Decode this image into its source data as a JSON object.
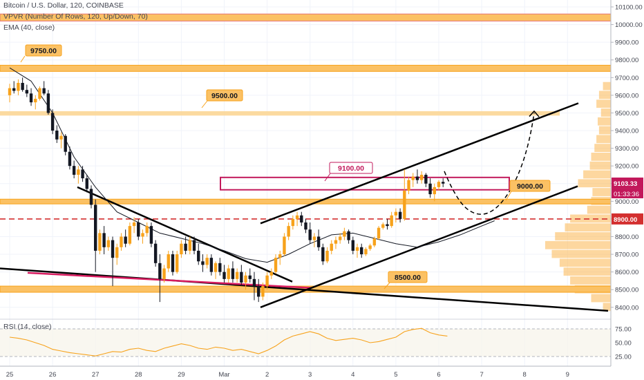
{
  "header": {
    "symbol_line": "Bitcoin / U.S. Dollar, 120, COINBASE",
    "indicator_vpvr": "VPVR (Number Of Rows, 120, Up/Down, 70)",
    "indicator_ema": "EMA (40, close)",
    "rsi_label": "RSI (14, close)"
  },
  "colors": {
    "up_candle": "#f7a21b",
    "down_candle": "#131722",
    "level_fill": "#fbc164",
    "level_stroke": "#f7a21b",
    "resistance_box": "#c2185b",
    "dashed_level": "#d32f2f",
    "trendline": "#000000",
    "pink_trendline": "#d81b60",
    "rsi_line": "#f7a21b",
    "volume_profile": "#fbb750"
  },
  "chart_data": {
    "type": "line",
    "title": "Bitcoin / U.S. Dollar, 120, COINBASE",
    "ylim": [
      8360,
      10100
    ],
    "y_ticks": [
      "10100.00",
      "10000.00",
      "9900.00",
      "9800.00",
      "9700.00",
      "9600.00",
      "9500.00",
      "9400.00",
      "9300.00",
      "9200.00",
      "9100.00",
      "9000.00",
      "8900.00",
      "8800.00",
      "8700.00",
      "8600.00",
      "8500.00",
      "8400.00"
    ],
    "x_ticks": [
      "25",
      "26",
      "27",
      "28",
      "29",
      "Mar",
      "2",
      "3",
      "4",
      "5",
      "6",
      "7",
      "8",
      "9"
    ],
    "series": [
      {
        "name": "EMA (40, close)",
        "values": [
          {
            "x": 25.0,
            "y": 9755
          },
          {
            "x": 25.5,
            "y": 9680
          },
          {
            "x": 26.0,
            "y": 9500
          },
          {
            "x": 26.5,
            "y": 9250
          },
          {
            "x": 27.0,
            "y": 9080
          },
          {
            "x": 27.5,
            "y": 8940
          },
          {
            "x": 28.0,
            "y": 8880
          },
          {
            "x": 28.5,
            "y": 8820
          },
          {
            "x": 29.0,
            "y": 8790
          },
          {
            "x": 29.5,
            "y": 8760
          },
          {
            "x": 30.0,
            "y": 8720
          },
          {
            "x": 30.5,
            "y": 8675
          },
          {
            "x": 31.0,
            "y": 8655
          },
          {
            "x": 31.5,
            "y": 8700
          },
          {
            "x": 32.0,
            "y": 8760
          },
          {
            "x": 32.5,
            "y": 8810
          },
          {
            "x": 33.0,
            "y": 8820
          },
          {
            "x": 33.5,
            "y": 8790
          },
          {
            "x": 34.0,
            "y": 8760
          },
          {
            "x": 34.5,
            "y": 8740
          },
          {
            "x": 35.0,
            "y": 8770
          },
          {
            "x": 35.5,
            "y": 8810
          },
          {
            "x": 36.0,
            "y": 8860
          },
          {
            "x": 36.3,
            "y": 8890
          }
        ]
      }
    ],
    "candles": [
      {
        "x": 25.0,
        "o": 9600,
        "h": 9665,
        "l": 9560,
        "c": 9640
      },
      {
        "x": 25.1,
        "o": 9640,
        "h": 9680,
        "l": 9610,
        "c": 9625
      },
      {
        "x": 25.2,
        "o": 9625,
        "h": 9690,
        "l": 9600,
        "c": 9670
      },
      {
        "x": 25.3,
        "o": 9670,
        "h": 9700,
        "l": 9620,
        "c": 9630
      },
      {
        "x": 25.4,
        "o": 9630,
        "h": 9660,
        "l": 9590,
        "c": 9610
      },
      {
        "x": 25.5,
        "o": 9610,
        "h": 9640,
        "l": 9540,
        "c": 9560
      },
      {
        "x": 25.6,
        "o": 9560,
        "h": 9600,
        "l": 9520,
        "c": 9580
      },
      {
        "x": 25.7,
        "o": 9580,
        "h": 9650,
        "l": 9570,
        "c": 9640
      },
      {
        "x": 25.8,
        "o": 9640,
        "h": 9680,
        "l": 9600,
        "c": 9610
      },
      {
        "x": 25.9,
        "o": 9610,
        "h": 9630,
        "l": 9490,
        "c": 9500
      },
      {
        "x": 26.0,
        "o": 9500,
        "h": 9520,
        "l": 9380,
        "c": 9400
      },
      {
        "x": 26.1,
        "o": 9400,
        "h": 9430,
        "l": 9330,
        "c": 9350
      },
      {
        "x": 26.2,
        "o": 9350,
        "h": 9390,
        "l": 9300,
        "c": 9370
      },
      {
        "x": 26.3,
        "o": 9370,
        "h": 9380,
        "l": 9260,
        "c": 9280
      },
      {
        "x": 26.4,
        "o": 9280,
        "h": 9310,
        "l": 9180,
        "c": 9200
      },
      {
        "x": 26.5,
        "o": 9200,
        "h": 9230,
        "l": 9130,
        "c": 9150
      },
      {
        "x": 26.6,
        "o": 9150,
        "h": 9200,
        "l": 9100,
        "c": 9180
      },
      {
        "x": 26.7,
        "o": 9180,
        "h": 9200,
        "l": 9110,
        "c": 9130
      },
      {
        "x": 26.8,
        "o": 9130,
        "h": 9150,
        "l": 9050,
        "c": 9070
      },
      {
        "x": 26.9,
        "o": 9070,
        "h": 9090,
        "l": 8960,
        "c": 8980
      },
      {
        "x": 27.0,
        "o": 8980,
        "h": 9010,
        "l": 8600,
        "c": 8720
      },
      {
        "x": 27.1,
        "o": 8720,
        "h": 8840,
        "l": 8700,
        "c": 8820
      },
      {
        "x": 27.2,
        "o": 8820,
        "h": 8860,
        "l": 8700,
        "c": 8740
      },
      {
        "x": 27.3,
        "o": 8740,
        "h": 8800,
        "l": 8720,
        "c": 8780
      },
      {
        "x": 27.4,
        "o": 8780,
        "h": 8800,
        "l": 8520,
        "c": 8680
      },
      {
        "x": 27.5,
        "o": 8680,
        "h": 8760,
        "l": 8640,
        "c": 8740
      },
      {
        "x": 27.6,
        "o": 8740,
        "h": 8820,
        "l": 8720,
        "c": 8800
      },
      {
        "x": 27.7,
        "o": 8800,
        "h": 8840,
        "l": 8740,
        "c": 8760
      },
      {
        "x": 27.8,
        "o": 8760,
        "h": 8880,
        "l": 8750,
        "c": 8860
      },
      {
        "x": 27.9,
        "o": 8860,
        "h": 8910,
        "l": 8820,
        "c": 8880
      },
      {
        "x": 28.0,
        "o": 8880,
        "h": 8900,
        "l": 8780,
        "c": 8800
      },
      {
        "x": 28.1,
        "o": 8800,
        "h": 8840,
        "l": 8760,
        "c": 8820
      },
      {
        "x": 28.2,
        "o": 8820,
        "h": 8880,
        "l": 8800,
        "c": 8860
      },
      {
        "x": 28.3,
        "o": 8860,
        "h": 8880,
        "l": 8740,
        "c": 8760
      },
      {
        "x": 28.4,
        "o": 8760,
        "h": 8780,
        "l": 8630,
        "c": 8650
      },
      {
        "x": 28.5,
        "o": 8650,
        "h": 8700,
        "l": 8430,
        "c": 8560
      },
      {
        "x": 28.6,
        "o": 8560,
        "h": 8640,
        "l": 8540,
        "c": 8620
      },
      {
        "x": 28.7,
        "o": 8620,
        "h": 8720,
        "l": 8600,
        "c": 8700
      },
      {
        "x": 28.8,
        "o": 8700,
        "h": 8720,
        "l": 8580,
        "c": 8600
      },
      {
        "x": 28.9,
        "o": 8600,
        "h": 8720,
        "l": 8590,
        "c": 8700
      },
      {
        "x": 29.0,
        "o": 8700,
        "h": 8780,
        "l": 8680,
        "c": 8760
      },
      {
        "x": 29.1,
        "o": 8760,
        "h": 8800,
        "l": 8700,
        "c": 8720
      },
      {
        "x": 29.2,
        "o": 8720,
        "h": 8800,
        "l": 8700,
        "c": 8780
      },
      {
        "x": 29.3,
        "o": 8780,
        "h": 8800,
        "l": 8700,
        "c": 8720
      },
      {
        "x": 29.4,
        "o": 8720,
        "h": 8760,
        "l": 8640,
        "c": 8660
      },
      {
        "x": 29.5,
        "o": 8660,
        "h": 8700,
        "l": 8600,
        "c": 8640
      },
      {
        "x": 29.6,
        "o": 8640,
        "h": 8700,
        "l": 8620,
        "c": 8680
      },
      {
        "x": 29.7,
        "o": 8680,
        "h": 8700,
        "l": 8580,
        "c": 8600
      },
      {
        "x": 29.8,
        "o": 8600,
        "h": 8660,
        "l": 8560,
        "c": 8650
      },
      {
        "x": 29.9,
        "o": 8650,
        "h": 8680,
        "l": 8580,
        "c": 8600
      },
      {
        "x": 30.0,
        "o": 8600,
        "h": 8640,
        "l": 8540,
        "c": 8560
      },
      {
        "x": 30.1,
        "o": 8560,
        "h": 8640,
        "l": 8540,
        "c": 8620
      },
      {
        "x": 30.2,
        "o": 8620,
        "h": 8660,
        "l": 8540,
        "c": 8560
      },
      {
        "x": 30.3,
        "o": 8560,
        "h": 8620,
        "l": 8540,
        "c": 8600
      },
      {
        "x": 30.4,
        "o": 8600,
        "h": 8640,
        "l": 8520,
        "c": 8540
      },
      {
        "x": 30.5,
        "o": 8540,
        "h": 8600,
        "l": 8500,
        "c": 8580
      },
      {
        "x": 30.6,
        "o": 8580,
        "h": 8620,
        "l": 8540,
        "c": 8560
      },
      {
        "x": 30.7,
        "o": 8560,
        "h": 8600,
        "l": 8440,
        "c": 8520
      },
      {
        "x": 30.8,
        "o": 8520,
        "h": 8560,
        "l": 8430,
        "c": 8460
      },
      {
        "x": 30.9,
        "o": 8460,
        "h": 8540,
        "l": 8440,
        "c": 8520
      },
      {
        "x": 31.0,
        "o": 8520,
        "h": 8600,
        "l": 8500,
        "c": 8580
      },
      {
        "x": 31.1,
        "o": 8580,
        "h": 8620,
        "l": 8560,
        "c": 8600
      },
      {
        "x": 31.2,
        "o": 8600,
        "h": 8700,
        "l": 8590,
        "c": 8680
      },
      {
        "x": 31.3,
        "o": 8680,
        "h": 8720,
        "l": 8640,
        "c": 8700
      },
      {
        "x": 31.4,
        "o": 8700,
        "h": 8820,
        "l": 8690,
        "c": 8800
      },
      {
        "x": 31.5,
        "o": 8800,
        "h": 8880,
        "l": 8780,
        "c": 8860
      },
      {
        "x": 31.6,
        "o": 8860,
        "h": 8920,
        "l": 8840,
        "c": 8900
      },
      {
        "x": 31.7,
        "o": 8900,
        "h": 8940,
        "l": 8860,
        "c": 8920
      },
      {
        "x": 31.8,
        "o": 8920,
        "h": 8940,
        "l": 8860,
        "c": 8880
      },
      {
        "x": 31.9,
        "o": 8880,
        "h": 8900,
        "l": 8820,
        "c": 8840
      },
      {
        "x": 32.0,
        "o": 8840,
        "h": 8880,
        "l": 8760,
        "c": 8780
      },
      {
        "x": 32.1,
        "o": 8780,
        "h": 8820,
        "l": 8740,
        "c": 8800
      },
      {
        "x": 32.2,
        "o": 8800,
        "h": 8840,
        "l": 8720,
        "c": 8740
      },
      {
        "x": 32.3,
        "o": 8740,
        "h": 8760,
        "l": 8640,
        "c": 8660
      },
      {
        "x": 32.4,
        "o": 8660,
        "h": 8740,
        "l": 8650,
        "c": 8720
      },
      {
        "x": 32.5,
        "o": 8720,
        "h": 8780,
        "l": 8700,
        "c": 8760
      },
      {
        "x": 32.6,
        "o": 8760,
        "h": 8800,
        "l": 8730,
        "c": 8780
      },
      {
        "x": 32.7,
        "o": 8780,
        "h": 8820,
        "l": 8760,
        "c": 8800
      },
      {
        "x": 32.8,
        "o": 8800,
        "h": 8850,
        "l": 8780,
        "c": 8830
      },
      {
        "x": 32.9,
        "o": 8830,
        "h": 8840,
        "l": 8760,
        "c": 8780
      },
      {
        "x": 33.0,
        "o": 8780,
        "h": 8800,
        "l": 8700,
        "c": 8720
      },
      {
        "x": 33.1,
        "o": 8720,
        "h": 8760,
        "l": 8680,
        "c": 8740
      },
      {
        "x": 33.2,
        "o": 8740,
        "h": 8760,
        "l": 8680,
        "c": 8700
      },
      {
        "x": 33.3,
        "o": 8700,
        "h": 8740,
        "l": 8690,
        "c": 8730
      },
      {
        "x": 33.4,
        "o": 8730,
        "h": 8760,
        "l": 8720,
        "c": 8750
      },
      {
        "x": 33.5,
        "o": 8750,
        "h": 8800,
        "l": 8740,
        "c": 8790
      },
      {
        "x": 33.6,
        "o": 8790,
        "h": 8860,
        "l": 8780,
        "c": 8850
      },
      {
        "x": 33.7,
        "o": 8850,
        "h": 8880,
        "l": 8840,
        "c": 8870
      },
      {
        "x": 33.8,
        "o": 8870,
        "h": 8900,
        "l": 8840,
        "c": 8860
      },
      {
        "x": 33.9,
        "o": 8860,
        "h": 8940,
        "l": 8850,
        "c": 8920
      },
      {
        "x": 34.0,
        "o": 8920,
        "h": 8960,
        "l": 8880,
        "c": 8940
      },
      {
        "x": 34.1,
        "o": 8940,
        "h": 8960,
        "l": 8880,
        "c": 8900
      },
      {
        "x": 34.2,
        "o": 8900,
        "h": 9180,
        "l": 8890,
        "c": 9060
      },
      {
        "x": 34.3,
        "o": 9060,
        "h": 9140,
        "l": 9040,
        "c": 9120
      },
      {
        "x": 34.4,
        "o": 9120,
        "h": 9160,
        "l": 9080,
        "c": 9140
      },
      {
        "x": 34.5,
        "o": 9140,
        "h": 9180,
        "l": 9100,
        "c": 9120
      },
      {
        "x": 34.6,
        "o": 9120,
        "h": 9170,
        "l": 9100,
        "c": 9150
      },
      {
        "x": 34.7,
        "o": 9150,
        "h": 9160,
        "l": 9080,
        "c": 9100
      },
      {
        "x": 34.8,
        "o": 9100,
        "h": 9130,
        "l": 9020,
        "c": 9040
      },
      {
        "x": 34.9,
        "o": 9040,
        "h": 9100,
        "l": 9000,
        "c": 9080
      },
      {
        "x": 35.0,
        "o": 9080,
        "h": 9120,
        "l": 9060,
        "c": 9110
      },
      {
        "x": 35.1,
        "o": 9110,
        "h": 9130,
        "l": 9080,
        "c": 9100
      }
    ],
    "rsi": {
      "name": "RSI (14, close)",
      "ylim": [
        20,
        80
      ],
      "y_ticks": [
        "75.00",
        "50.00",
        "25.00"
      ],
      "values": [
        {
          "x": 25.0,
          "y": 60
        },
        {
          "x": 25.2,
          "y": 58
        },
        {
          "x": 25.4,
          "y": 55
        },
        {
          "x": 25.6,
          "y": 50
        },
        {
          "x": 25.8,
          "y": 45
        },
        {
          "x": 26.0,
          "y": 38
        },
        {
          "x": 26.2,
          "y": 35
        },
        {
          "x": 26.4,
          "y": 32
        },
        {
          "x": 26.6,
          "y": 30
        },
        {
          "x": 26.8,
          "y": 28
        },
        {
          "x": 27.0,
          "y": 26
        },
        {
          "x": 27.2,
          "y": 30
        },
        {
          "x": 27.4,
          "y": 34
        },
        {
          "x": 27.6,
          "y": 33
        },
        {
          "x": 27.8,
          "y": 38
        },
        {
          "x": 28.0,
          "y": 40
        },
        {
          "x": 28.2,
          "y": 36
        },
        {
          "x": 28.4,
          "y": 34
        },
        {
          "x": 28.6,
          "y": 40
        },
        {
          "x": 28.8,
          "y": 44
        },
        {
          "x": 29.0,
          "y": 48
        },
        {
          "x": 29.2,
          "y": 45
        },
        {
          "x": 29.4,
          "y": 40
        },
        {
          "x": 29.6,
          "y": 38
        },
        {
          "x": 29.8,
          "y": 42
        },
        {
          "x": 30.0,
          "y": 40
        },
        {
          "x": 30.2,
          "y": 36
        },
        {
          "x": 30.4,
          "y": 38
        },
        {
          "x": 30.6,
          "y": 34
        },
        {
          "x": 30.8,
          "y": 30
        },
        {
          "x": 31.0,
          "y": 36
        },
        {
          "x": 31.2,
          "y": 44
        },
        {
          "x": 31.4,
          "y": 55
        },
        {
          "x": 31.6,
          "y": 62
        },
        {
          "x": 31.8,
          "y": 66
        },
        {
          "x": 32.0,
          "y": 70
        },
        {
          "x": 32.2,
          "y": 66
        },
        {
          "x": 32.4,
          "y": 58
        },
        {
          "x": 32.6,
          "y": 54
        },
        {
          "x": 32.8,
          "y": 56
        },
        {
          "x": 33.0,
          "y": 58
        },
        {
          "x": 33.2,
          "y": 55
        },
        {
          "x": 33.4,
          "y": 50
        },
        {
          "x": 33.6,
          "y": 52
        },
        {
          "x": 33.8,
          "y": 56
        },
        {
          "x": 34.0,
          "y": 60
        },
        {
          "x": 34.2,
          "y": 70
        },
        {
          "x": 34.4,
          "y": 74
        },
        {
          "x": 34.6,
          "y": 76
        },
        {
          "x": 34.8,
          "y": 68
        },
        {
          "x": 35.0,
          "y": 64
        },
        {
          "x": 35.2,
          "y": 62
        }
      ]
    },
    "levels": [
      {
        "label": "9750.00",
        "price": 9750
      },
      {
        "label": "9500.00",
        "price": 9500
      },
      {
        "label": "9100.00",
        "price": 9100
      },
      {
        "label": "9000.00",
        "price": 9000
      },
      {
        "label": "8500.00",
        "price": 8500
      }
    ],
    "dashed_level": 8900,
    "price_tags": {
      "last_price": "9103.33",
      "countdown": "01:33:36",
      "dashed_level": "8900.00"
    },
    "volume_profile": [
      {
        "price": 9650,
        "v": 0.12
      },
      {
        "price": 9600,
        "v": 0.18
      },
      {
        "price": 9550,
        "v": 0.22
      },
      {
        "price": 9500,
        "v": 0.15
      },
      {
        "price": 9450,
        "v": 0.2
      },
      {
        "price": 9400,
        "v": 0.18
      },
      {
        "price": 9350,
        "v": 0.22
      },
      {
        "price": 9300,
        "v": 0.25
      },
      {
        "price": 9250,
        "v": 0.3
      },
      {
        "price": 9200,
        "v": 0.32
      },
      {
        "price": 9150,
        "v": 0.42
      },
      {
        "price": 9100,
        "v": 0.5
      },
      {
        "price": 9050,
        "v": 0.28
      },
      {
        "price": 9000,
        "v": 0.3
      },
      {
        "price": 8950,
        "v": 0.36
      },
      {
        "price": 8900,
        "v": 0.62
      },
      {
        "price": 8850,
        "v": 0.7
      },
      {
        "price": 8800,
        "v": 0.85
      },
      {
        "price": 8750,
        "v": 1.0
      },
      {
        "price": 8700,
        "v": 0.9
      },
      {
        "price": 8650,
        "v": 0.78
      },
      {
        "price": 8600,
        "v": 0.72
      },
      {
        "price": 8550,
        "v": 0.62
      },
      {
        "price": 8500,
        "v": 0.55
      },
      {
        "price": 8450,
        "v": 0.3
      },
      {
        "price": 8400,
        "v": 0.12
      }
    ],
    "grid": true,
    "legend": "top-left"
  }
}
